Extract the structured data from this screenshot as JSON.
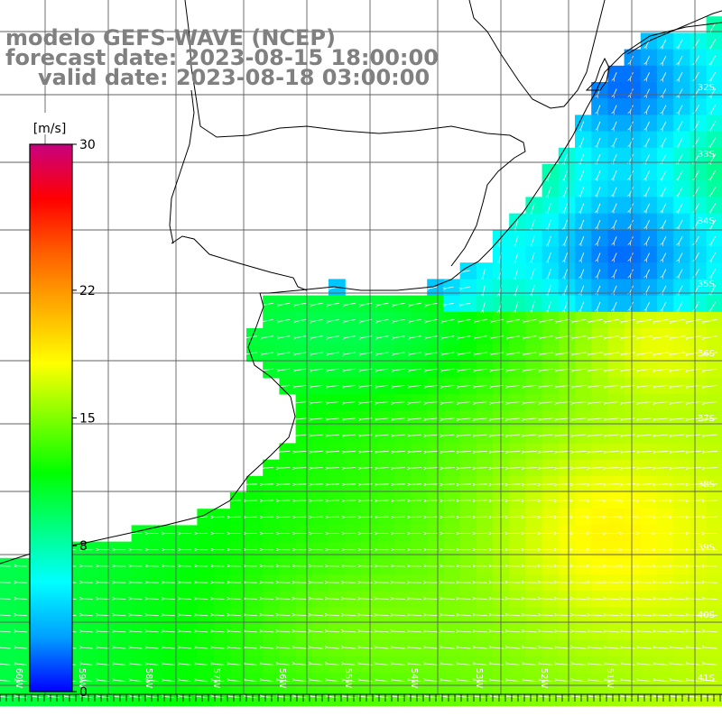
{
  "title": {
    "line1": "modelo GEFS-WAVE (NCEP)",
    "line2": "forecast date: 2023-08-15 18:00:00",
    "line3": "valid date: 2023-08-18 03:00:00"
  },
  "colorbar": {
    "unit": "[m/s]",
    "min": 0,
    "max": 30,
    "tick_labels": [
      "30",
      "22",
      "15",
      "8",
      "0"
    ],
    "tick_values": [
      30,
      22,
      15,
      8,
      0
    ],
    "stops": [
      "#0000ff",
      "#00a0ff",
      "#00ffff",
      "#00ff80",
      "#00ff00",
      "#80ff00",
      "#ffff00",
      "#ffb000",
      "#ff6000",
      "#ff0000",
      "#c80080"
    ]
  },
  "map_data": {
    "field": "wind speed with direction arrows",
    "lon_range": [
      -59.5,
      -49.5
    ],
    "lat_range": [
      -41.3,
      -30.8
    ],
    "lat_labels": [
      "32S",
      "33S",
      "34S",
      "35S",
      "36S",
      "37S",
      "38S",
      "39S",
      "40S",
      "41S"
    ],
    "lon_labels": [
      "60W",
      "59W",
      "58W",
      "57W",
      "56W",
      "55W",
      "54W",
      "53W",
      "52W",
      "51W"
    ],
    "grid_lines": true,
    "land_color": "#ffffff",
    "coast_color": "#000000"
  }
}
